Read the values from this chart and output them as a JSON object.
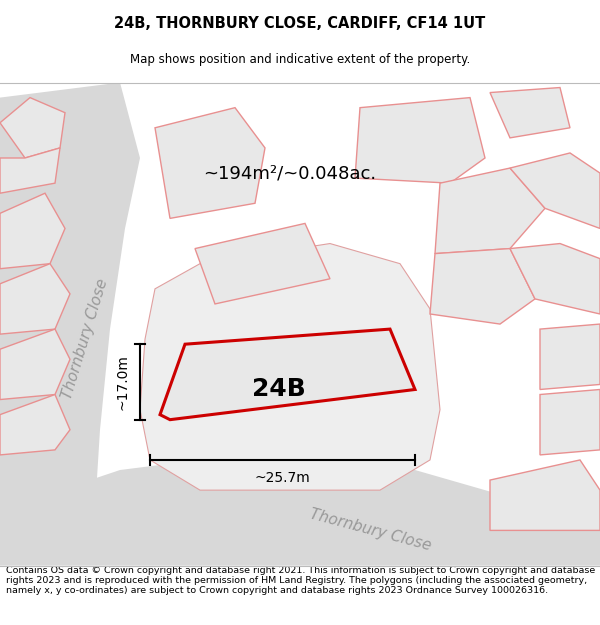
{
  "title": "24B, THORNBURY CLOSE, CARDIFF, CF14 1UT",
  "subtitle": "Map shows position and indicative extent of the property.",
  "footer": "Contains OS data © Crown copyright and database right 2021. This information is subject to Crown copyright and database rights 2023 and is reproduced with the permission of HM Land Registry. The polygons (including the associated geometry, namely x, y co-ordinates) are subject to Crown copyright and database rights 2023 Ordnance Survey 100026316.",
  "area_label": "~194m²/~0.048ac.",
  "property_label": "24B",
  "width_label": "~25.7m",
  "height_label": "~17.0m",
  "road_label_bottom": "Thornbury Close",
  "road_label_left": "Thornbury Close",
  "map_bg": "#ffffff",
  "building_fill": "#e8e8e8",
  "building_edge": "#e89090",
  "property_fill": "#e8e8e8",
  "property_edge": "#cc0000",
  "title_fontsize": 10.5,
  "subtitle_fontsize": 8.5,
  "footer_fontsize": 6.8,
  "area_fontsize": 13,
  "property_label_fontsize": 18,
  "road_label_fontsize": 11,
  "dim_fontsize": 10
}
